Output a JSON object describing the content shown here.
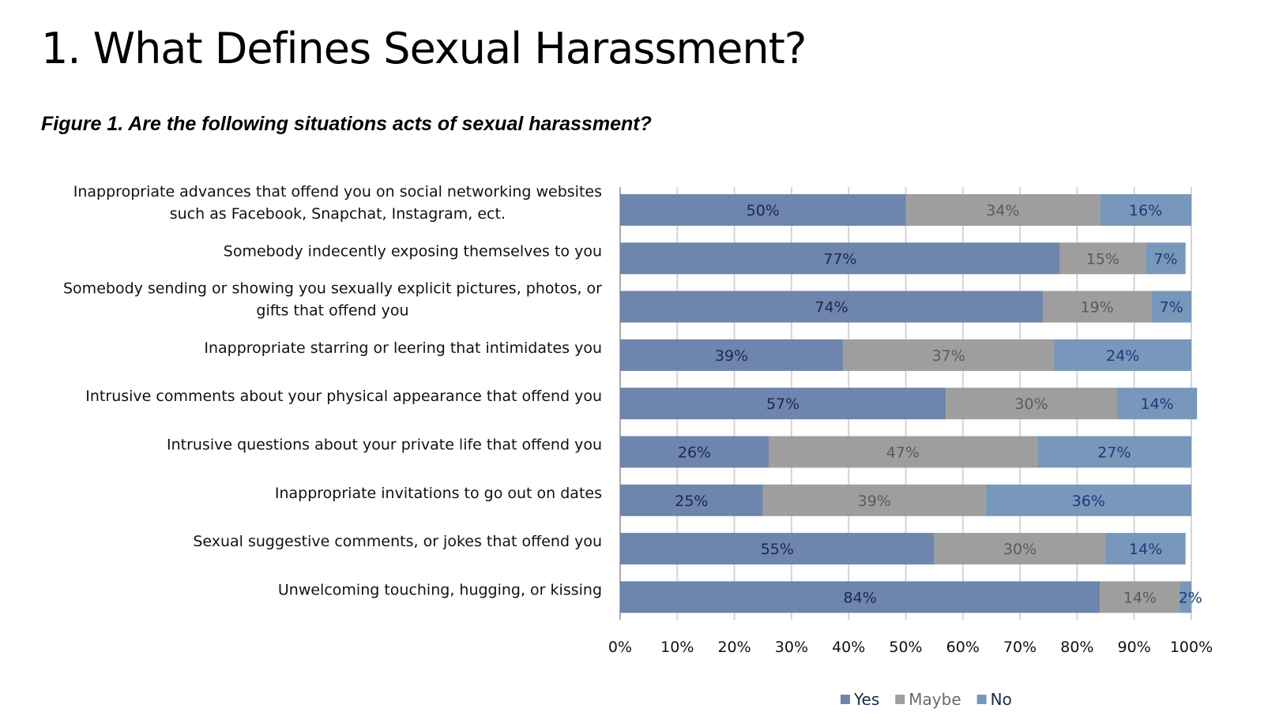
{
  "page": {
    "title": "1. What Defines Sexual Harassment?",
    "figure_caption": "Figure 1. Are the following situations acts of sexual harassment?"
  },
  "colors": {
    "yes": "#6e85ad",
    "maybe": "#9e9e9e",
    "no": "#7898bb",
    "yes_label": "#1c2a4a",
    "maybe_label": "#5a5a5a",
    "no_label": "#1c3a7a",
    "gridline": "#d4d4d4",
    "axis": "#aaaaaa"
  },
  "chart_data": {
    "type": "bar",
    "orientation": "horizontal",
    "stacked": true,
    "categories": [
      [
        "Inappropriate advances that offend you on social networking websites",
        "such as Facebook, Snapchat, Instagram, ect."
      ],
      [
        "Somebody indecently exposing themselves to you"
      ],
      [
        "Somebody sending or showing you sexually explicit pictures, photos, or",
        "gifts that offend you"
      ],
      [
        "Inappropriate starring or leering that intimidates you"
      ],
      [
        "Intrusive comments about your physical appearance that offend you"
      ],
      [
        "Intrusive questions about your private life that offend you"
      ],
      [
        "Inappropriate invitations to go out on dates"
      ],
      [
        "Sexual suggestive comments, or jokes that offend you"
      ],
      [
        "Unwelcoming touching, hugging, or kissing"
      ]
    ],
    "series": [
      {
        "name": "Yes",
        "color_key": "yes",
        "values": [
          50,
          77,
          74,
          39,
          57,
          26,
          25,
          55,
          84
        ]
      },
      {
        "name": "Maybe",
        "color_key": "maybe",
        "values": [
          34,
          15,
          19,
          37,
          30,
          47,
          39,
          30,
          14
        ]
      },
      {
        "name": "No",
        "color_key": "no",
        "values": [
          16,
          7,
          7,
          24,
          14,
          27,
          36,
          14,
          2
        ]
      }
    ],
    "xlim": [
      0,
      100
    ],
    "x_ticks": [
      "0%",
      "10%",
      "20%",
      "30%",
      "40%",
      "50%",
      "60%",
      "70%",
      "80%",
      "90%",
      "100%"
    ],
    "value_suffix": "%",
    "grid": true,
    "legend_position": "bottom"
  }
}
